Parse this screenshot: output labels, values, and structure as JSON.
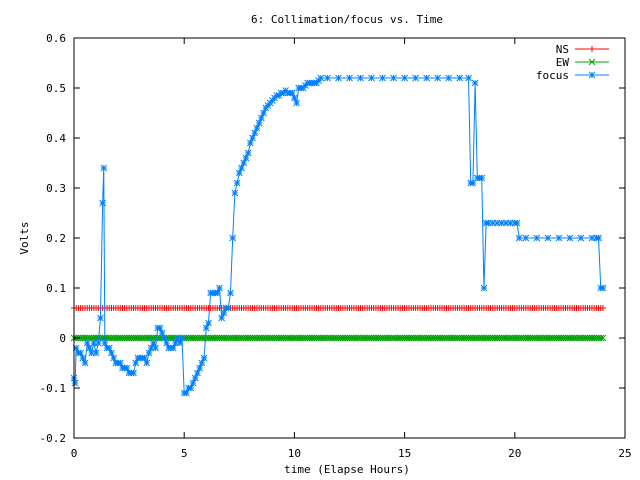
{
  "chart_data": {
    "type": "line",
    "title": "6: Collimation/focus vs. Time",
    "xlabel": "time (Elapse Hours)",
    "ylabel": "Volts",
    "xlim": [
      0,
      25
    ],
    "ylim": [
      -0.2,
      0.6
    ],
    "xticks": [
      {
        "value": 0,
        "label": "0"
      },
      {
        "value": 5,
        "label": "5"
      },
      {
        "value": 10,
        "label": "10"
      },
      {
        "value": 15,
        "label": "15"
      },
      {
        "value": 20,
        "label": "20"
      },
      {
        "value": 25,
        "label": "25"
      }
    ],
    "yticks": [
      {
        "value": -0.2,
        "label": "-0.2"
      },
      {
        "value": -0.1,
        "label": "-0.1"
      },
      {
        "value": 0,
        "label": "0"
      },
      {
        "value": 0.1,
        "label": "0.1"
      },
      {
        "value": 0.2,
        "label": "0.2"
      },
      {
        "value": 0.3,
        "label": "0.3"
      },
      {
        "value": 0.4,
        "label": "0.4"
      },
      {
        "value": 0.5,
        "label": "0.5"
      },
      {
        "value": 0.6,
        "label": "0.6"
      }
    ],
    "grid": false,
    "legend_position": "top-right",
    "series": [
      {
        "name": "NS",
        "color": "#ff0000",
        "marker": "plus",
        "constant": {
          "x_start": 0,
          "x_end": 24,
          "x_step": 0.1,
          "y": 0.06
        }
      },
      {
        "name": "EW",
        "color": "#00a000",
        "marker": "cross",
        "constant": {
          "x_start": 0,
          "x_end": 24,
          "x_step": 0.1,
          "y": 0.0
        }
      },
      {
        "name": "focus",
        "color": "#0080ff",
        "marker": "star",
        "points": [
          [
            0.0,
            -0.08
          ],
          [
            0.05,
            -0.09
          ],
          [
            0.1,
            -0.02
          ],
          [
            0.2,
            -0.03
          ],
          [
            0.3,
            -0.03
          ],
          [
            0.4,
            -0.04
          ],
          [
            0.5,
            -0.05
          ],
          [
            0.6,
            -0.01
          ],
          [
            0.7,
            -0.02
          ],
          [
            0.8,
            -0.03
          ],
          [
            0.9,
            -0.01
          ],
          [
            1.0,
            -0.03
          ],
          [
            1.1,
            -0.01
          ],
          [
            1.2,
            0.04
          ],
          [
            1.3,
            0.27
          ],
          [
            1.35,
            0.34
          ],
          [
            1.4,
            -0.01
          ],
          [
            1.5,
            -0.02
          ],
          [
            1.6,
            -0.02
          ],
          [
            1.7,
            -0.03
          ],
          [
            1.8,
            -0.04
          ],
          [
            1.9,
            -0.05
          ],
          [
            2.0,
            -0.05
          ],
          [
            2.1,
            -0.05
          ],
          [
            2.2,
            -0.06
          ],
          [
            2.3,
            -0.06
          ],
          [
            2.4,
            -0.06
          ],
          [
            2.5,
            -0.07
          ],
          [
            2.6,
            -0.07
          ],
          [
            2.7,
            -0.07
          ],
          [
            2.8,
            -0.05
          ],
          [
            2.9,
            -0.04
          ],
          [
            3.0,
            -0.04
          ],
          [
            3.1,
            -0.04
          ],
          [
            3.2,
            -0.04
          ],
          [
            3.3,
            -0.05
          ],
          [
            3.4,
            -0.03
          ],
          [
            3.5,
            -0.02
          ],
          [
            3.6,
            -0.01
          ],
          [
            3.7,
            -0.02
          ],
          [
            3.8,
            0.02
          ],
          [
            3.9,
            0.02
          ],
          [
            4.0,
            0.01
          ],
          [
            4.1,
            0.0
          ],
          [
            4.2,
            -0.01
          ],
          [
            4.3,
            -0.02
          ],
          [
            4.4,
            -0.02
          ],
          [
            4.5,
            -0.02
          ],
          [
            4.6,
            -0.01
          ],
          [
            4.7,
            0.0
          ],
          [
            4.8,
            -0.01
          ],
          [
            4.9,
            0.0
          ],
          [
            5.0,
            -0.11
          ],
          [
            5.1,
            -0.11
          ],
          [
            5.2,
            -0.1
          ],
          [
            5.3,
            -0.1
          ],
          [
            5.4,
            -0.09
          ],
          [
            5.5,
            -0.08
          ],
          [
            5.6,
            -0.07
          ],
          [
            5.7,
            -0.06
          ],
          [
            5.8,
            -0.05
          ],
          [
            5.9,
            -0.04
          ],
          [
            6.0,
            0.02
          ],
          [
            6.1,
            0.03
          ],
          [
            6.2,
            0.09
          ],
          [
            6.3,
            0.09
          ],
          [
            6.4,
            0.09
          ],
          [
            6.5,
            0.09
          ],
          [
            6.6,
            0.1
          ],
          [
            6.7,
            0.04
          ],
          [
            6.8,
            0.05
          ],
          [
            6.9,
            0.06
          ],
          [
            7.0,
            0.06
          ],
          [
            7.1,
            0.09
          ],
          [
            7.2,
            0.2
          ],
          [
            7.3,
            0.29
          ],
          [
            7.4,
            0.31
          ],
          [
            7.5,
            0.33
          ],
          [
            7.6,
            0.34
          ],
          [
            7.7,
            0.35
          ],
          [
            7.8,
            0.36
          ],
          [
            7.9,
            0.37
          ],
          [
            8.0,
            0.39
          ],
          [
            8.1,
            0.4
          ],
          [
            8.2,
            0.41
          ],
          [
            8.3,
            0.42
          ],
          [
            8.4,
            0.43
          ],
          [
            8.5,
            0.44
          ],
          [
            8.6,
            0.45
          ],
          [
            8.7,
            0.46
          ],
          [
            8.8,
            0.465
          ],
          [
            8.9,
            0.47
          ],
          [
            9.0,
            0.475
          ],
          [
            9.1,
            0.48
          ],
          [
            9.2,
            0.485
          ],
          [
            9.3,
            0.485
          ],
          [
            9.4,
            0.49
          ],
          [
            9.5,
            0.49
          ],
          [
            9.6,
            0.495
          ],
          [
            9.7,
            0.49
          ],
          [
            9.8,
            0.49
          ],
          [
            9.9,
            0.49
          ],
          [
            10.0,
            0.48
          ],
          [
            10.1,
            0.47
          ],
          [
            10.2,
            0.5
          ],
          [
            10.3,
            0.5
          ],
          [
            10.4,
            0.5
          ],
          [
            10.5,
            0.505
          ],
          [
            10.6,
            0.51
          ],
          [
            10.7,
            0.51
          ],
          [
            10.8,
            0.51
          ],
          [
            10.9,
            0.51
          ],
          [
            11.0,
            0.51
          ],
          [
            11.1,
            0.515
          ],
          [
            11.2,
            0.52
          ],
          [
            11.5,
            0.52
          ],
          [
            12.0,
            0.52
          ],
          [
            12.5,
            0.52
          ],
          [
            13.0,
            0.52
          ],
          [
            13.5,
            0.52
          ],
          [
            14.0,
            0.52
          ],
          [
            14.5,
            0.52
          ],
          [
            15.0,
            0.52
          ],
          [
            15.5,
            0.52
          ],
          [
            16.0,
            0.52
          ],
          [
            16.5,
            0.52
          ],
          [
            17.0,
            0.52
          ],
          [
            17.5,
            0.52
          ],
          [
            17.9,
            0.52
          ],
          [
            18.0,
            0.31
          ],
          [
            18.1,
            0.31
          ],
          [
            18.2,
            0.51
          ],
          [
            18.3,
            0.32
          ],
          [
            18.4,
            0.32
          ],
          [
            18.5,
            0.32
          ],
          [
            18.6,
            0.1
          ],
          [
            18.7,
            0.23
          ],
          [
            18.8,
            0.23
          ],
          [
            19.0,
            0.23
          ],
          [
            19.2,
            0.23
          ],
          [
            19.4,
            0.23
          ],
          [
            19.6,
            0.23
          ],
          [
            19.8,
            0.23
          ],
          [
            20.0,
            0.23
          ],
          [
            20.1,
            0.23
          ],
          [
            20.2,
            0.2
          ],
          [
            20.5,
            0.2
          ],
          [
            21.0,
            0.2
          ],
          [
            21.5,
            0.2
          ],
          [
            22.0,
            0.2
          ],
          [
            22.5,
            0.2
          ],
          [
            23.0,
            0.2
          ],
          [
            23.5,
            0.2
          ],
          [
            23.7,
            0.2
          ],
          [
            23.8,
            0.2
          ],
          [
            23.9,
            0.1
          ],
          [
            24.0,
            0.1
          ]
        ]
      }
    ]
  }
}
